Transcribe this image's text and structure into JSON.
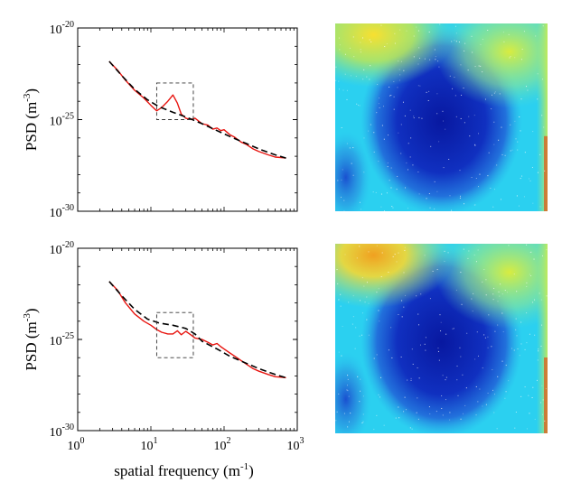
{
  "chart_data": [
    {
      "type": "line",
      "panel": "top-left",
      "xscale": "log",
      "yscale": "log",
      "xlim": [
        1,
        1000
      ],
      "ylim": [
        1e-30,
        1e-20
      ],
      "xlabel": "",
      "ylabel": "PSD (m-3)",
      "ylabel_parts": {
        "main": "PSD (m",
        "sup": "-3",
        "close": ")"
      },
      "yticks": [
        {
          "value": 1e-20,
          "base": "10",
          "exp": "-20"
        },
        {
          "value": 1e-25,
          "base": "10",
          "exp": "-25"
        },
        {
          "value": 1e-30,
          "base": "10",
          "exp": "-30"
        }
      ],
      "xticks": [],
      "series": [
        {
          "color": "#e8140f",
          "style": "solid",
          "x": [
            2.7,
            3.5,
            4.5,
            6,
            8,
            10,
            12,
            14,
            17,
            20,
            23,
            26,
            30,
            35,
            40,
            50,
            60,
            70,
            80,
            90,
            100,
            120,
            140,
            170,
            200,
            250,
            300,
            400,
            500,
            600,
            700
          ],
          "y": [
            1.5e-22,
            5e-23,
            1.4e-23,
            4e-24,
            1.5e-24,
            6e-25,
            3e-25,
            4.5e-25,
            1e-24,
            2.2e-24,
            8e-25,
            2e-25,
            1.2e-25,
            1e-25,
            1.2e-25,
            6e-26,
            5e-26,
            3e-26,
            3.5e-26,
            2.5e-26,
            2.8e-26,
            1.5e-26,
            1.1e-26,
            6e-27,
            4.5e-27,
            2.5e-27,
            1.8e-27,
            1.2e-27,
            9e-28,
            8.5e-28,
            8e-28
          ]
        },
        {
          "color": "#000000",
          "style": "dashed",
          "x": [
            2.7,
            4,
            6,
            9,
            13,
            20,
            30,
            50,
            80,
            120,
            200,
            300,
            500,
            700
          ],
          "y": [
            1.5e-22,
            2.5e-23,
            4.5e-24,
            1.2e-24,
            5e-25,
            2.5e-25,
            1.4e-25,
            6e-26,
            2.5e-26,
            1.2e-26,
            5e-27,
            2.5e-27,
            1.2e-27,
            8e-28
          ]
        }
      ],
      "zoom_box": {
        "x": [
          12,
          38
        ],
        "y": [
          1e-25,
          1e-23
        ]
      }
    },
    {
      "type": "line",
      "panel": "bottom-left",
      "xscale": "log",
      "yscale": "log",
      "xlim": [
        1,
        1000
      ],
      "ylim": [
        1e-30,
        1e-20
      ],
      "xlabel": "spatial frequency (m-1)",
      "xlabel_parts": {
        "main": "spatial frequency (m",
        "sup": "-1",
        "close": ")"
      },
      "ylabel": "PSD (m-3)",
      "ylabel_parts": {
        "main": "PSD (m",
        "sup": "-3",
        "close": ")"
      },
      "yticks": [
        {
          "value": 1e-20,
          "base": "10",
          "exp": "-20"
        },
        {
          "value": 1e-25,
          "base": "10",
          "exp": "-25"
        },
        {
          "value": 1e-30,
          "base": "10",
          "exp": "-30"
        }
      ],
      "xticks": [
        {
          "value": 1,
          "base": "10",
          "exp": "0"
        },
        {
          "value": 10,
          "base": "10",
          "exp": "1"
        },
        {
          "value": 100,
          "base": "10",
          "exp": "2"
        },
        {
          "value": 1000,
          "base": "10",
          "exp": "3"
        }
      ],
      "series": [
        {
          "color": "#e8140f",
          "style": "solid",
          "x": [
            2.7,
            3.5,
            4.5,
            6,
            8,
            10,
            12,
            14,
            17,
            20,
            23,
            26,
            30,
            35,
            40,
            50,
            60,
            70,
            80,
            90,
            100,
            120,
            140,
            170,
            200,
            250,
            300,
            400,
            500,
            600,
            700
          ],
          "y": [
            1.5e-22,
            5e-23,
            1e-23,
            2.5e-24,
            1e-24,
            6e-25,
            3.5e-25,
            2.5e-25,
            2e-25,
            2e-25,
            3e-25,
            1.8e-25,
            2.8e-25,
            1.8e-25,
            1.2e-25,
            1e-25,
            7e-26,
            5e-26,
            6e-26,
            4e-26,
            3e-26,
            1.8e-26,
            1.2e-26,
            7e-27,
            4.5e-27,
            2.5e-27,
            1.8e-27,
            1.2e-27,
            9e-28,
            8.5e-28,
            8e-28
          ]
        },
        {
          "color": "#000000",
          "style": "dashed",
          "x": [
            2.7,
            4,
            6,
            9,
            13,
            20,
            30,
            40,
            50,
            80,
            120,
            200,
            300,
            500,
            700
          ],
          "y": [
            1.5e-22,
            2.5e-23,
            4.5e-24,
            1.3e-24,
            8e-25,
            6e-25,
            4e-25,
            2e-25,
            8e-26,
            3e-26,
            1.2e-26,
            5e-27,
            2.5e-27,
            1.2e-27,
            8e-28
          ]
        }
      ],
      "zoom_box": {
        "x": [
          12,
          38
        ],
        "y": [
          1e-26,
          3e-24
        ]
      }
    }
  ],
  "heatmaps": [
    {
      "panel": "top-right",
      "colormap": "jet",
      "background": "#2bd0f0",
      "blobs": [
        {
          "color": "#0a1ca8",
          "strength": 1.0,
          "shape": "ellipse-center"
        },
        {
          "color": "#fadc28",
          "strength": 0.8,
          "shape": "top-left"
        },
        {
          "color": "#e6ec3a",
          "strength": 0.6,
          "shape": "top-right"
        },
        {
          "color": "#2a70d8",
          "strength": 0.7,
          "shape": "bottom-left"
        },
        {
          "color": "#d83a10",
          "strength": 0.9,
          "shape": "corner-bottom-right"
        }
      ]
    },
    {
      "panel": "bottom-right",
      "colormap": "jet",
      "background": "#2bd0f0",
      "blobs": [
        {
          "color": "#0a1ca8",
          "strength": 1.0,
          "shape": "ellipse-center"
        },
        {
          "color": "#f5b020",
          "strength": 0.9,
          "shape": "top-left"
        },
        {
          "color": "#e6ec3a",
          "strength": 0.6,
          "shape": "top-right"
        },
        {
          "color": "#2a70d8",
          "strength": 0.7,
          "shape": "bottom-left"
        },
        {
          "color": "#d83a10",
          "strength": 0.9,
          "shape": "corner-bottom-right"
        }
      ]
    }
  ]
}
